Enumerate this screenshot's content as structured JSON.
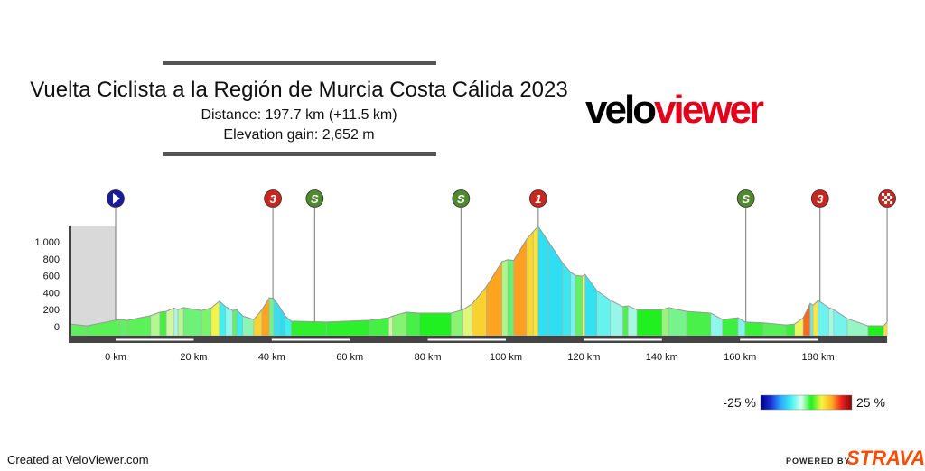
{
  "header": {
    "title": "Vuelta Ciclista a la Región de Murcia Costa Cálida 2023",
    "distance": "Distance: 197.7 km (+11.5 km)",
    "elevation_gain": "Elevation gain: 2,652 m",
    "logo_text_black": "velo",
    "logo_text_red": "viewer"
  },
  "footer": {
    "created": "Created at VeloViewer.com",
    "powered_by": "POWERED BY",
    "strava": "STRAVA"
  },
  "colors": {
    "strava": "#fc4c02",
    "logo_red": "#e3001b",
    "axis": "#444444",
    "neutral": "#d9d9d9"
  },
  "chart_data": {
    "type": "area",
    "xlabel": "",
    "ylabel": "",
    "x_unit": "km",
    "y_unit": "m",
    "xlim": [
      -11.5,
      197.7
    ],
    "ylim": [
      0,
      1200
    ],
    "x_ticks": [
      "0 km",
      "20 km",
      "40 km",
      "60 km",
      "80 km",
      "100 km",
      "120 km",
      "140 km",
      "160 km",
      "180 km"
    ],
    "x_tick_values": [
      0,
      20,
      40,
      60,
      80,
      100,
      120,
      140,
      160,
      180
    ],
    "y_ticks": [
      "0",
      "200",
      "400",
      "600",
      "800",
      "1,000"
    ],
    "y_tick_values": [
      0,
      200,
      400,
      600,
      800,
      1000
    ],
    "neutral_zone_km": [
      -11.5,
      0
    ],
    "profile": [
      [
        -11.5,
        30
      ],
      [
        -7.4,
        10
      ],
      [
        1,
        85
      ],
      [
        3,
        75
      ],
      [
        9,
        130
      ],
      [
        11.3,
        170
      ],
      [
        13,
        180
      ],
      [
        15,
        220
      ],
      [
        16,
        200
      ],
      [
        17.4,
        225
      ],
      [
        22,
        190
      ],
      [
        24.5,
        220
      ],
      [
        26.6,
        300
      ],
      [
        28.2,
        235
      ],
      [
        30,
        190
      ],
      [
        31,
        200
      ],
      [
        32.6,
        125
      ],
      [
        35.4,
        85
      ],
      [
        37.5,
        200
      ],
      [
        39.4,
        340
      ],
      [
        40.5,
        330
      ],
      [
        42,
        235
      ],
      [
        43.5,
        125
      ],
      [
        45,
        65
      ],
      [
        54,
        55
      ],
      [
        65,
        75
      ],
      [
        70,
        105
      ],
      [
        71,
        125
      ],
      [
        74.5,
        170
      ],
      [
        77.8,
        160
      ],
      [
        86,
        160
      ],
      [
        89,
        200
      ],
      [
        91.3,
        265
      ],
      [
        95,
        470
      ],
      [
        99,
        765
      ],
      [
        100.5,
        790
      ],
      [
        102,
        780
      ],
      [
        105.3,
        1030
      ],
      [
        107,
        1120
      ],
      [
        108.3,
        1180
      ],
      [
        110.8,
        1010
      ],
      [
        114.6,
        745
      ],
      [
        116.6,
        640
      ],
      [
        117.8,
        605
      ],
      [
        119.6,
        595
      ],
      [
        120.3,
        615
      ],
      [
        123.3,
        425
      ],
      [
        126.8,
        310
      ],
      [
        130,
        235
      ],
      [
        131.3,
        245
      ],
      [
        133.6,
        200
      ],
      [
        140,
        200
      ],
      [
        141.7,
        225
      ],
      [
        146.3,
        180
      ],
      [
        152.5,
        160
      ],
      [
        155.5,
        85
      ],
      [
        159.5,
        105
      ],
      [
        161.3,
        55
      ],
      [
        166,
        45
      ],
      [
        171.8,
        20
      ],
      [
        174,
        30
      ],
      [
        176.2,
        105
      ],
      [
        178,
        275
      ],
      [
        178.7,
        250
      ],
      [
        180,
        310
      ],
      [
        182.7,
        225
      ],
      [
        184,
        200
      ],
      [
        187.5,
        95
      ],
      [
        192.8,
        10
      ],
      [
        196.8,
        10
      ],
      [
        197.7,
        55
      ]
    ],
    "markers": [
      {
        "km": 0,
        "type": "start",
        "label": "",
        "color": "#1a1aa0",
        "icon": "play-icon"
      },
      {
        "km": 40.3,
        "type": "kom",
        "label": "3",
        "color": "#c8261e",
        "icon": "kom-3-icon"
      },
      {
        "km": 51,
        "type": "sprint",
        "label": "S",
        "color": "#4f8a2e",
        "icon": "sprint-icon"
      },
      {
        "km": 88.5,
        "type": "sprint",
        "label": "S",
        "color": "#4f8a2e",
        "icon": "sprint-icon"
      },
      {
        "km": 108.3,
        "type": "kom",
        "label": "1",
        "color": "#c8261e",
        "icon": "kom-1-icon"
      },
      {
        "km": 161.5,
        "type": "sprint",
        "label": "S",
        "color": "#4f8a2e",
        "icon": "sprint-icon"
      },
      {
        "km": 180.5,
        "type": "kom",
        "label": "3",
        "color": "#c8261e",
        "icon": "kom-3-icon"
      },
      {
        "km": 197.7,
        "type": "finish",
        "label": "",
        "color": "#c8261e",
        "icon": "checkered-flag-icon"
      }
    ],
    "legend": {
      "min_label": "-25 %",
      "max_label": "25 %",
      "min": -25,
      "max": 25,
      "stops": [
        "#00007a",
        "#1a2fd8",
        "#2aa8ff",
        "#3ff0f0",
        "#d8fff0",
        "#20f020",
        "#f5f540",
        "#ffb020",
        "#ee2020",
        "#7a0a0a"
      ]
    }
  }
}
